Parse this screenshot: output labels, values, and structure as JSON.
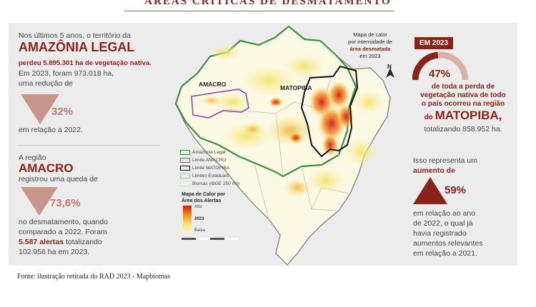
{
  "title": "ÁREAS CRÍTICAS DE DESMATAMENTO",
  "left_block1": {
    "intro": "Nos últimos 5 anos, o território da",
    "region": "AMAZÔNIA LEGAL",
    "lost": "perdeu 5.895.301 ha de vegetação nativa.",
    "line2": "Em 2023, foram 973.018 ha,",
    "line3": "uma redução de",
    "percent": "32%",
    "tail": "em relação a 2022."
  },
  "left_block2": {
    "intro": "A região",
    "region": "AMACRO",
    "line1": "registrou uma queda de",
    "percent": "73,6%",
    "line2": "no desmatamento, quando",
    "line3": "comparado a 2022. Foram",
    "alerts": "5.587 alertas",
    "alerts_tail": " totalizando",
    "line4": "102.956 ha em 2023."
  },
  "map": {
    "heat_title_1": "Mapa de calor",
    "heat_title_2": "por intensidade de",
    "heat_title_3": "área desmatada",
    "heat_title_4": "em 2023",
    "label_amacro": "AMACRO",
    "label_matopiba": "MATOPIBA",
    "north": "N",
    "legend": {
      "items": [
        "Amazônia Legal",
        "Limite AMACRO",
        "Limite MATOPIBA",
        "Limites Estaduais",
        "Biomas (IBGE 250 mil)"
      ],
      "colors": [
        "#3f8f3f",
        "#8e44ad",
        "#111111",
        "#bbbbbb",
        "#cfe6cf"
      ],
      "heat_title_1": "Mapa de Calor por",
      "heat_title_2": "Área dos Alertas",
      "high": "Alta",
      "year": "2023",
      "low": "Baixa"
    }
  },
  "right_block1": {
    "badge": "EM 2023",
    "percent": "47%",
    "line1": "de toda a perda de",
    "line2": "vegetação nativa de todo",
    "line3": "o país ocorreu na região",
    "line4_prefix": "do ",
    "region": "MATOPIBA,",
    "total": "totalizando 858.952 ha."
  },
  "right_block2": {
    "line1": "Isso representa um",
    "line2": "aumento de",
    "percent": "59%",
    "line3": "em relação ao ano",
    "line4": "de 2022, o qual já",
    "line5": "havia registrado",
    "line6": "aumentos relevantes",
    "line7": "em relação a 2021."
  },
  "footer": "Fonte: ilustração retirada  do RAD 2023 - Mapbiomas",
  "colors": {
    "accent": "#8b2219",
    "soft": "#c07a6e",
    "panel": "#ececec"
  }
}
